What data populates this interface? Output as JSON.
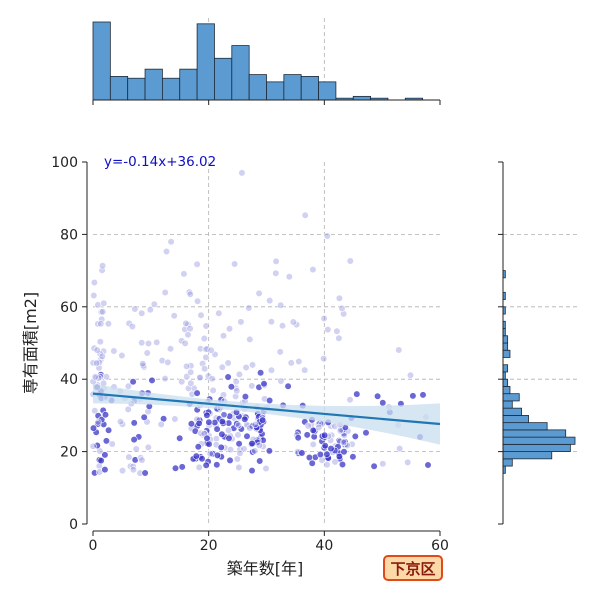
{
  "chart_data": {
    "type": "scatter",
    "xlabel": "築年数[年]",
    "ylabel": "専有面積[m2]",
    "xlim": [
      0,
      60
    ],
    "ylim": [
      0,
      100
    ],
    "x_ticks": [
      "0",
      "20",
      "40",
      "60"
    ],
    "y_ticks": [
      "0",
      "20",
      "40",
      "60",
      "80",
      "100"
    ],
    "grid": "dashed gray",
    "regression": {
      "label": "y=-0.14x+36.02",
      "slope": -0.14,
      "intercept": 36.02,
      "x_range": [
        0,
        60
      ]
    },
    "marginal_x_hist": {
      "bin_width": 3,
      "bin_start": 0,
      "counts": [
        43,
        13,
        12,
        17,
        12,
        17,
        42,
        23,
        30,
        14,
        10,
        14,
        13,
        10,
        1,
        2,
        1,
        0,
        1,
        0
      ]
    },
    "marginal_y_hist": {
      "bin_width": 2,
      "bin_start": 14,
      "counts": [
        1,
        4,
        21,
        29,
        31,
        27,
        19,
        11,
        8,
        4,
        7,
        3,
        2,
        1,
        2,
        0,
        3,
        2,
        2,
        1,
        1,
        0,
        1,
        0,
        1,
        0,
        0,
        1,
        0,
        0,
        0,
        0,
        0,
        0,
        0,
        0,
        0,
        0,
        0,
        0,
        0,
        0,
        0
      ]
    },
    "colors": {
      "points": "#3a35c8",
      "points_light": "#9a98e2",
      "regression": "#1f77b4",
      "band": "#c9ddef",
      "hist": "#5b9bd1",
      "annotation": "#1010c0"
    }
  },
  "badge": {
    "label": "下京区"
  }
}
